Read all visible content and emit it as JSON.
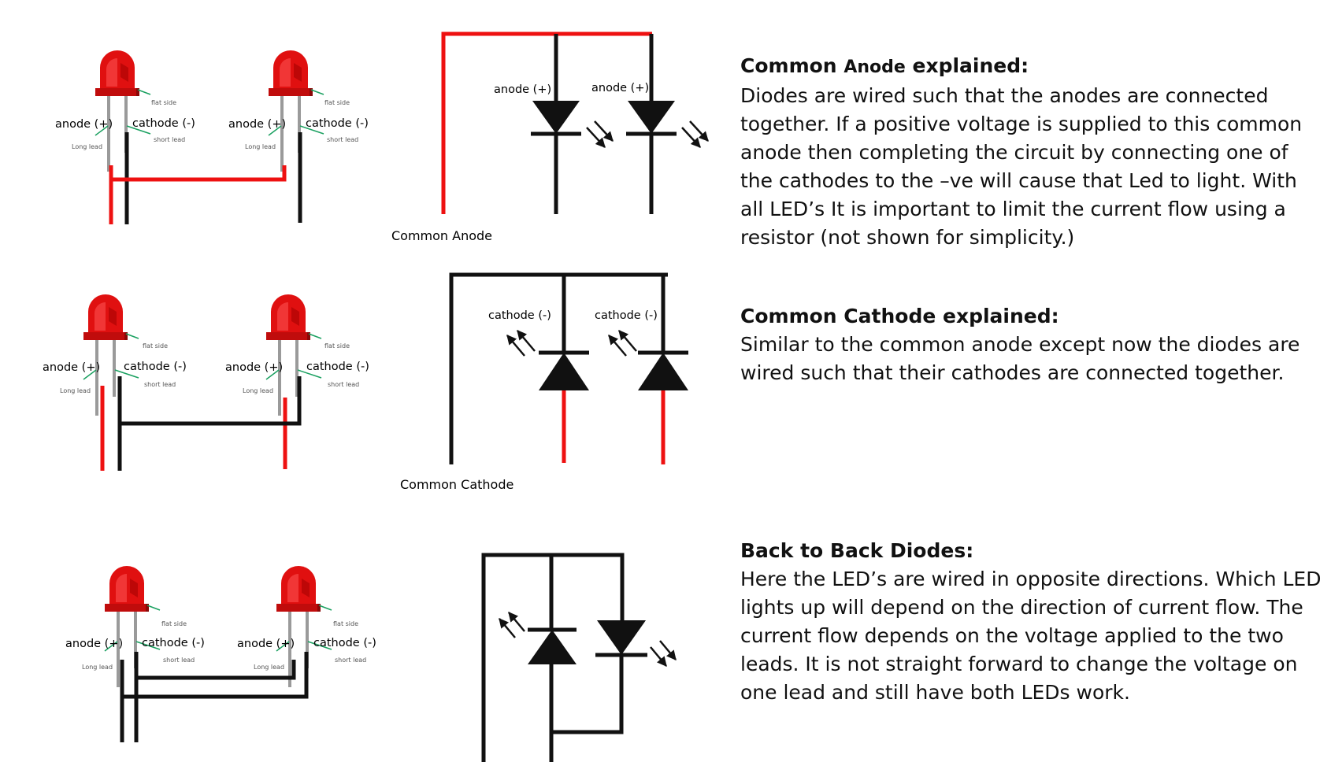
{
  "labels": {
    "anode": "anode (+)",
    "cathode": "cathode (-)",
    "flat_side": "flat side",
    "short_lead": "short lead",
    "long_lead": "Long lead",
    "common_anode": "Common Anode",
    "common_cathode": "Common Cathode"
  },
  "sections": [
    {
      "title_pre": "Common ",
      "title_mid": "Anode",
      "title_post": " explained:",
      "body": "Diodes are wired such that the anodes are connected together. If a positive voltage is supplied to this common anode then completing the circuit by connecting one of the cathodes to the –ve  will cause that Led to light. With all LED’s It is important to limit the current flow using a resistor (not shown for simplicity.)"
    },
    {
      "title": "Common Cathode explained:",
      "body": "Similar to the common anode except now the diodes are wired such that their cathodes are connected together."
    },
    {
      "title": "Back to Back Diodes:",
      "body": "Here the LED’s are wired in opposite directions. Which LED lights up will depend on the direction of current flow. The current flow depends on the voltage applied to the two leads. It is not straight forward to change the voltage on one lead and still have both LEDs work."
    }
  ],
  "colors": {
    "wire_red": "#ee1111",
    "wire_black": "#111111",
    "led_red": "#e01010",
    "lead_gray": "#9a9a9a",
    "pointer_green": "#1aa060",
    "label_gray": "#555555"
  }
}
